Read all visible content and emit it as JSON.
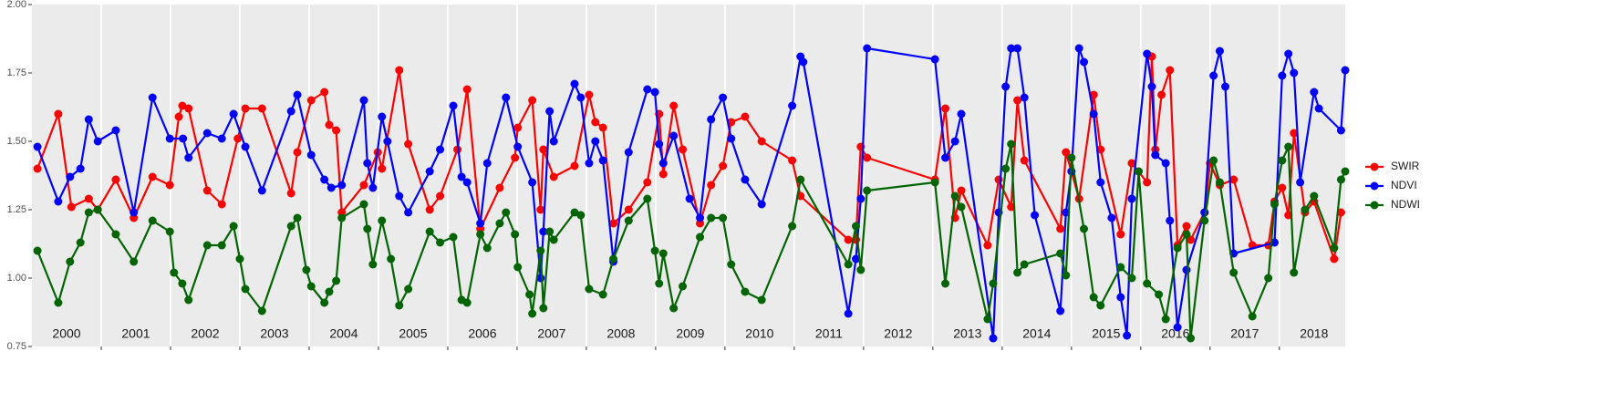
{
  "chart_data": {
    "type": "line",
    "xlim": [
      2000,
      2018.95
    ],
    "ylim": [
      0.75,
      2.0
    ],
    "yticks": [
      {
        "value": 0.75,
        "label": "0.75"
      },
      {
        "value": 1.0,
        "label": "1.00"
      },
      {
        "value": 1.25,
        "label": "1.25"
      },
      {
        "value": 1.5,
        "label": "1.50"
      },
      {
        "value": 1.75,
        "label": "1.75"
      },
      {
        "value": 2.0,
        "label": "2.00"
      }
    ],
    "xticks": [
      {
        "value": 2000.5,
        "label": "2000"
      },
      {
        "value": 2001.5,
        "label": "2001"
      },
      {
        "value": 2002.5,
        "label": "2002"
      },
      {
        "value": 2003.5,
        "label": "2003"
      },
      {
        "value": 2004.5,
        "label": "2004"
      },
      {
        "value": 2005.5,
        "label": "2005"
      },
      {
        "value": 2006.5,
        "label": "2006"
      },
      {
        "value": 2007.5,
        "label": "2007"
      },
      {
        "value": 2008.5,
        "label": "2008"
      },
      {
        "value": 2009.5,
        "label": "2009"
      },
      {
        "value": 2010.5,
        "label": "2010"
      },
      {
        "value": 2011.5,
        "label": "2011"
      },
      {
        "value": 2012.5,
        "label": "2012"
      },
      {
        "value": 2013.5,
        "label": "2013"
      },
      {
        "value": 2014.5,
        "label": "2014"
      },
      {
        "value": 2015.5,
        "label": "2015"
      },
      {
        "value": 2016.5,
        "label": "2016"
      },
      {
        "value": 2017.5,
        "label": "2017"
      },
      {
        "value": 2018.5,
        "label": "2018"
      }
    ],
    "year_boundaries": [
      2001,
      2002,
      2003,
      2004,
      2005,
      2006,
      2007,
      2008,
      2009,
      2010,
      2011,
      2012,
      2013,
      2014,
      2015,
      2016,
      2017,
      2018
    ],
    "series": [
      {
        "name": "SWIR",
        "color": "#ff0000",
        "x": [
          2000.08,
          2000.38,
          2000.57,
          2000.82,
          2000.95,
          2001.21,
          2001.47,
          2001.74,
          2001.99,
          2002.12,
          2002.17,
          2002.26,
          2002.53,
          2002.74,
          2002.97,
          2003.08,
          2003.32,
          2003.74,
          2003.83,
          2004.03,
          2004.22,
          2004.29,
          2004.39,
          2004.47,
          2004.79,
          2004.99,
          2005.05,
          2005.3,
          2005.43,
          2005.74,
          2005.89,
          2006.14,
          2006.28,
          2006.47,
          2006.75,
          2006.97,
          2007.01,
          2007.22,
          2007.34,
          2007.38,
          2007.53,
          2007.83,
          2008.04,
          2008.13,
          2008.24,
          2008.39,
          2008.61,
          2008.88,
          2009.05,
          2009.11,
          2009.26,
          2009.39,
          2009.64,
          2009.8,
          2009.97,
          2010.09,
          2010.29,
          2010.53,
          2010.97,
          2011.09,
          2011.78,
          2011.89,
          2011.96,
          2012.05,
          2013.03,
          2013.18,
          2013.32,
          2013.41,
          2013.79,
          2013.95,
          2014.13,
          2014.22,
          2014.32,
          2014.84,
          2014.92,
          2015.11,
          2015.32,
          2015.42,
          2015.71,
          2015.87,
          2016.09,
          2016.16,
          2016.21,
          2016.3,
          2016.42,
          2016.53,
          2016.66,
          2016.72,
          2016.92,
          2017.0,
          2017.14,
          2017.34,
          2017.61,
          2017.84,
          2017.93,
          2018.04,
          2018.13,
          2018.21,
          2018.37,
          2018.5,
          2018.79,
          2018.89
        ],
        "values": [
          1.4,
          1.6,
          1.26,
          1.29,
          1.25,
          1.36,
          1.22,
          1.37,
          1.34,
          1.59,
          1.63,
          1.62,
          1.32,
          1.27,
          1.51,
          1.62,
          1.62,
          1.31,
          1.46,
          1.65,
          1.68,
          1.56,
          1.54,
          1.24,
          1.34,
          1.46,
          1.4,
          1.76,
          1.49,
          1.25,
          1.3,
          1.47,
          1.69,
          1.18,
          1.33,
          1.44,
          1.55,
          1.65,
          1.25,
          1.47,
          1.37,
          1.41,
          1.67,
          1.57,
          1.55,
          1.2,
          1.25,
          1.35,
          1.6,
          1.38,
          1.63,
          1.47,
          1.2,
          1.34,
          1.41,
          1.57,
          1.59,
          1.5,
          1.43,
          1.3,
          1.14,
          1.14,
          1.48,
          1.44,
          1.36,
          1.62,
          1.22,
          1.32,
          1.12,
          1.36,
          1.26,
          1.65,
          1.43,
          1.18,
          1.46,
          1.29,
          1.67,
          1.47,
          1.16,
          1.42,
          1.35,
          1.81,
          1.47,
          1.67,
          1.76,
          1.12,
          1.19,
          1.14,
          1.24,
          1.42,
          1.34,
          1.36,
          1.12,
          1.12,
          1.28,
          1.33,
          1.23,
          1.53,
          1.24,
          1.28,
          1.07,
          1.24
        ]
      },
      {
        "name": "NDVI",
        "color": "#0000ff",
        "x": [
          2000.08,
          2000.38,
          2000.55,
          2000.7,
          2000.82,
          2000.95,
          2001.21,
          2001.47,
          2001.74,
          2001.99,
          2002.18,
          2002.26,
          2002.53,
          2002.74,
          2002.91,
          2003.08,
          2003.32,
          2003.74,
          2003.83,
          2004.03,
          2004.22,
          2004.32,
          2004.47,
          2004.79,
          2004.84,
          2004.92,
          2005.05,
          2005.13,
          2005.3,
          2005.43,
          2005.74,
          2005.89,
          2006.08,
          2006.2,
          2006.28,
          2006.47,
          2006.57,
          2006.84,
          2007.01,
          2007.22,
          2007.34,
          2007.38,
          2007.47,
          2007.53,
          2007.83,
          2007.92,
          2008.04,
          2008.13,
          2008.24,
          2008.39,
          2008.61,
          2008.88,
          2008.99,
          2009.05,
          2009.11,
          2009.26,
          2009.49,
          2009.64,
          2009.8,
          2009.97,
          2010.09,
          2010.29,
          2010.53,
          2010.97,
          2011.09,
          2011.13,
          2011.78,
          2011.89,
          2011.96,
          2012.05,
          2013.03,
          2013.18,
          2013.32,
          2013.41,
          2013.87,
          2013.95,
          2014.05,
          2014.13,
          2014.22,
          2014.32,
          2014.47,
          2014.84,
          2014.92,
          2015.0,
          2015.11,
          2015.18,
          2015.32,
          2015.42,
          2015.58,
          2015.71,
          2015.8,
          2015.87,
          2016.09,
          2016.16,
          2016.21,
          2016.36,
          2016.42,
          2016.53,
          2016.66,
          2016.92,
          2017.05,
          2017.14,
          2017.22,
          2017.34,
          2017.93,
          2018.04,
          2018.13,
          2018.21,
          2018.3,
          2018.5,
          2018.57,
          2018.89,
          2018.95
        ],
        "values": [
          1.48,
          1.28,
          1.37,
          1.4,
          1.58,
          1.5,
          1.54,
          1.24,
          1.66,
          1.51,
          1.51,
          1.44,
          1.53,
          1.51,
          1.6,
          1.48,
          1.32,
          1.61,
          1.67,
          1.45,
          1.36,
          1.33,
          1.34,
          1.65,
          1.42,
          1.33,
          1.59,
          1.5,
          1.3,
          1.24,
          1.39,
          1.47,
          1.63,
          1.37,
          1.35,
          1.2,
          1.42,
          1.66,
          1.48,
          1.35,
          1.0,
          1.17,
          1.61,
          1.5,
          1.71,
          1.66,
          1.42,
          1.5,
          1.43,
          1.06,
          1.46,
          1.69,
          1.68,
          1.49,
          1.42,
          1.52,
          1.29,
          1.22,
          1.58,
          1.66,
          1.51,
          1.36,
          1.27,
          1.63,
          1.81,
          1.79,
          0.87,
          1.07,
          1.29,
          1.84,
          1.8,
          1.44,
          1.5,
          1.6,
          0.78,
          1.24,
          1.7,
          1.84,
          1.84,
          1.66,
          1.23,
          0.88,
          1.24,
          1.39,
          1.84,
          1.79,
          1.6,
          1.35,
          1.22,
          0.93,
          0.79,
          1.29,
          1.82,
          1.7,
          1.45,
          1.42,
          1.21,
          0.82,
          1.03,
          1.24,
          1.74,
          1.83,
          1.7,
          1.09,
          1.13,
          1.74,
          1.82,
          1.75,
          1.35,
          1.68,
          1.62,
          1.54,
          1.76
        ]
      },
      {
        "name": "NDWI",
        "color": "#006400",
        "x": [
          2000.08,
          2000.38,
          2000.55,
          2000.7,
          2000.82,
          2000.95,
          2001.21,
          2001.47,
          2001.74,
          2001.99,
          2002.05,
          2002.17,
          2002.26,
          2002.53,
          2002.74,
          2002.91,
          2003.0,
          2003.08,
          2003.32,
          2003.74,
          2003.83,
          2003.96,
          2004.03,
          2004.22,
          2004.29,
          2004.39,
          2004.47,
          2004.79,
          2004.84,
          2004.92,
          2005.05,
          2005.18,
          2005.3,
          2005.43,
          2005.74,
          2005.89,
          2006.08,
          2006.2,
          2006.28,
          2006.47,
          2006.57,
          2006.75,
          2006.84,
          2006.97,
          2007.01,
          2007.18,
          2007.22,
          2007.34,
          2007.38,
          2007.47,
          2007.53,
          2007.83,
          2007.92,
          2008.04,
          2008.24,
          2008.39,
          2008.61,
          2008.88,
          2008.99,
          2009.05,
          2009.11,
          2009.26,
          2009.39,
          2009.64,
          2009.8,
          2009.97,
          2010.09,
          2010.29,
          2010.53,
          2010.97,
          2011.09,
          2011.78,
          2011.89,
          2011.96,
          2012.05,
          2013.03,
          2013.18,
          2013.32,
          2013.41,
          2013.79,
          2013.87,
          2014.05,
          2014.13,
          2014.22,
          2014.32,
          2014.84,
          2014.92,
          2015.0,
          2015.18,
          2015.32,
          2015.42,
          2015.71,
          2015.87,
          2015.97,
          2016.09,
          2016.26,
          2016.36,
          2016.53,
          2016.66,
          2016.72,
          2016.92,
          2017.05,
          2017.14,
          2017.34,
          2017.61,
          2017.84,
          2017.93,
          2018.04,
          2018.13,
          2018.21,
          2018.37,
          2018.5,
          2018.79,
          2018.89,
          2018.95
        ],
        "values": [
          1.1,
          0.91,
          1.06,
          1.13,
          1.24,
          1.25,
          1.16,
          1.06,
          1.21,
          1.17,
          1.02,
          0.98,
          0.92,
          1.12,
          1.12,
          1.19,
          1.07,
          0.96,
          0.88,
          1.19,
          1.22,
          1.03,
          0.97,
          0.91,
          0.95,
          0.99,
          1.22,
          1.27,
          1.18,
          1.05,
          1.21,
          1.07,
          0.9,
          0.96,
          1.17,
          1.13,
          1.15,
          0.92,
          0.91,
          1.16,
          1.11,
          1.2,
          1.24,
          1.16,
          1.04,
          0.94,
          0.87,
          1.1,
          0.89,
          1.17,
          1.14,
          1.24,
          1.23,
          0.96,
          0.94,
          1.07,
          1.21,
          1.29,
          1.1,
          0.98,
          1.09,
          0.89,
          0.97,
          1.15,
          1.22,
          1.22,
          1.05,
          0.95,
          0.92,
          1.19,
          1.36,
          1.05,
          1.19,
          1.03,
          1.32,
          1.35,
          0.98,
          1.3,
          1.26,
          0.85,
          0.98,
          1.4,
          1.49,
          1.02,
          1.05,
          1.09,
          1.01,
          1.44,
          1.18,
          0.93,
          0.9,
          1.04,
          1.0,
          1.39,
          0.98,
          0.94,
          0.85,
          1.11,
          1.16,
          0.78,
          1.21,
          1.43,
          1.35,
          1.02,
          0.86,
          1.0,
          1.27,
          1.43,
          1.48,
          1.02,
          1.25,
          1.3,
          1.11,
          1.36,
          1.39
        ]
      }
    ]
  }
}
